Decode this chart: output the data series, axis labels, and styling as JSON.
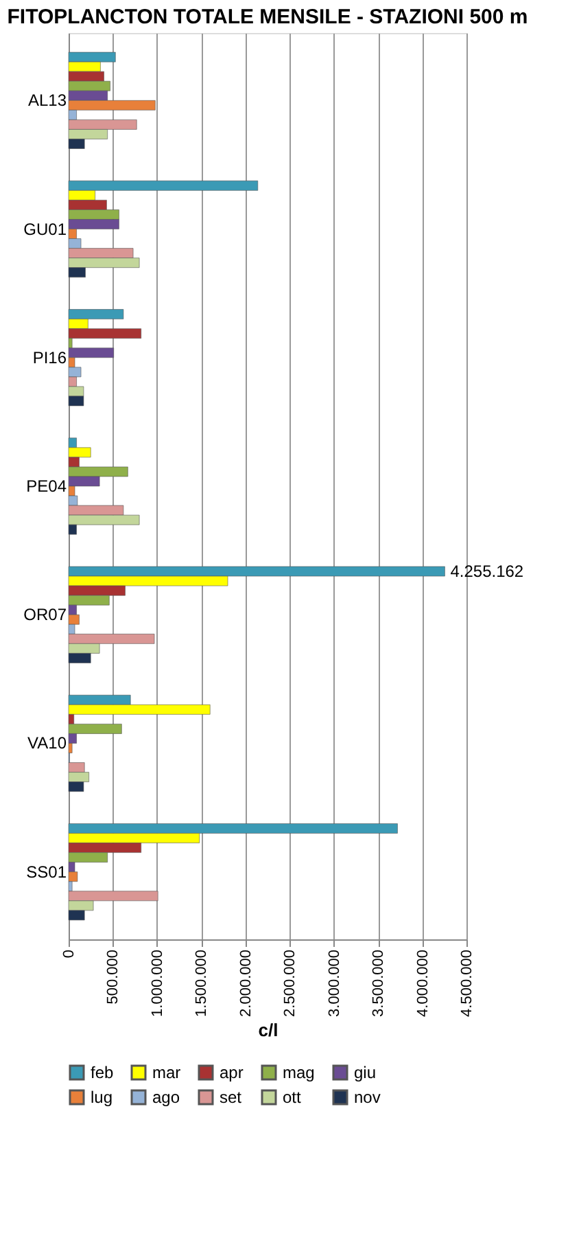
{
  "chart_data": {
    "type": "bar",
    "orientation": "horizontal",
    "title": "FITOPLANCTON TOTALE MENSILE - STAZIONI 500 m",
    "xlabel": "c/l",
    "categories": [
      "AL13",
      "GU01",
      "PI16",
      "PE04",
      "OR07",
      "VA10",
      "SS01"
    ],
    "series": [
      {
        "name": "feb",
        "color": "#3b9ab5",
        "values": [
          530000,
          2140000,
          620000,
          90000,
          4255162,
          700000,
          3720000
        ],
        "value_labels": [
          null,
          null,
          null,
          null,
          "4.255.162",
          null,
          null
        ]
      },
      {
        "name": "mar",
        "color": "#ffff00",
        "values": [
          360000,
          300000,
          220000,
          250000,
          1800000,
          1600000,
          1480000
        ]
      },
      {
        "name": "apr",
        "color": "#a83232",
        "values": [
          400000,
          430000,
          820000,
          120000,
          640000,
          60000,
          820000
        ]
      },
      {
        "name": "mag",
        "color": "#8fb04a",
        "values": [
          470000,
          570000,
          40000,
          670000,
          460000,
          600000,
          440000
        ]
      },
      {
        "name": "giu",
        "color": "#6a4c93",
        "values": [
          440000,
          570000,
          510000,
          350000,
          90000,
          90000,
          70000
        ]
      },
      {
        "name": "lug",
        "color": "#e8803a",
        "values": [
          980000,
          90000,
          70000,
          70000,
          120000,
          40000,
          100000
        ]
      },
      {
        "name": "ago",
        "color": "#95b3d7",
        "values": [
          90000,
          140000,
          140000,
          100000,
          70000,
          10000,
          40000
        ]
      },
      {
        "name": "set",
        "color": "#d99694",
        "values": [
          770000,
          730000,
          90000,
          620000,
          970000,
          180000,
          1010000
        ]
      },
      {
        "name": "ott",
        "color": "#c3d69b",
        "values": [
          440000,
          800000,
          170000,
          800000,
          350000,
          230000,
          280000
        ]
      },
      {
        "name": "nov",
        "color": "#1f3352",
        "values": [
          180000,
          190000,
          170000,
          90000,
          250000,
          170000,
          180000
        ]
      }
    ],
    "xlim": [
      0,
      4500000
    ],
    "xticks": [
      0,
      {
        "value": 500000,
        "label": "500.000"
      },
      {
        "value": 1000000,
        "label": "1.000.000"
      },
      {
        "value": 1500000,
        "label": "1.500.000"
      },
      {
        "value": 2000000,
        "label": "2.000.000"
      },
      {
        "value": 2500000,
        "label": "2.500.000"
      },
      {
        "value": 3000000,
        "label": "3.000.000"
      },
      {
        "value": 3500000,
        "label": "3.500.000"
      },
      {
        "value": 4000000,
        "label": "4.000.000"
      },
      {
        "value": 4500000,
        "label": "4.500.000"
      }
    ],
    "grid": "x",
    "legend": "bottom"
  }
}
